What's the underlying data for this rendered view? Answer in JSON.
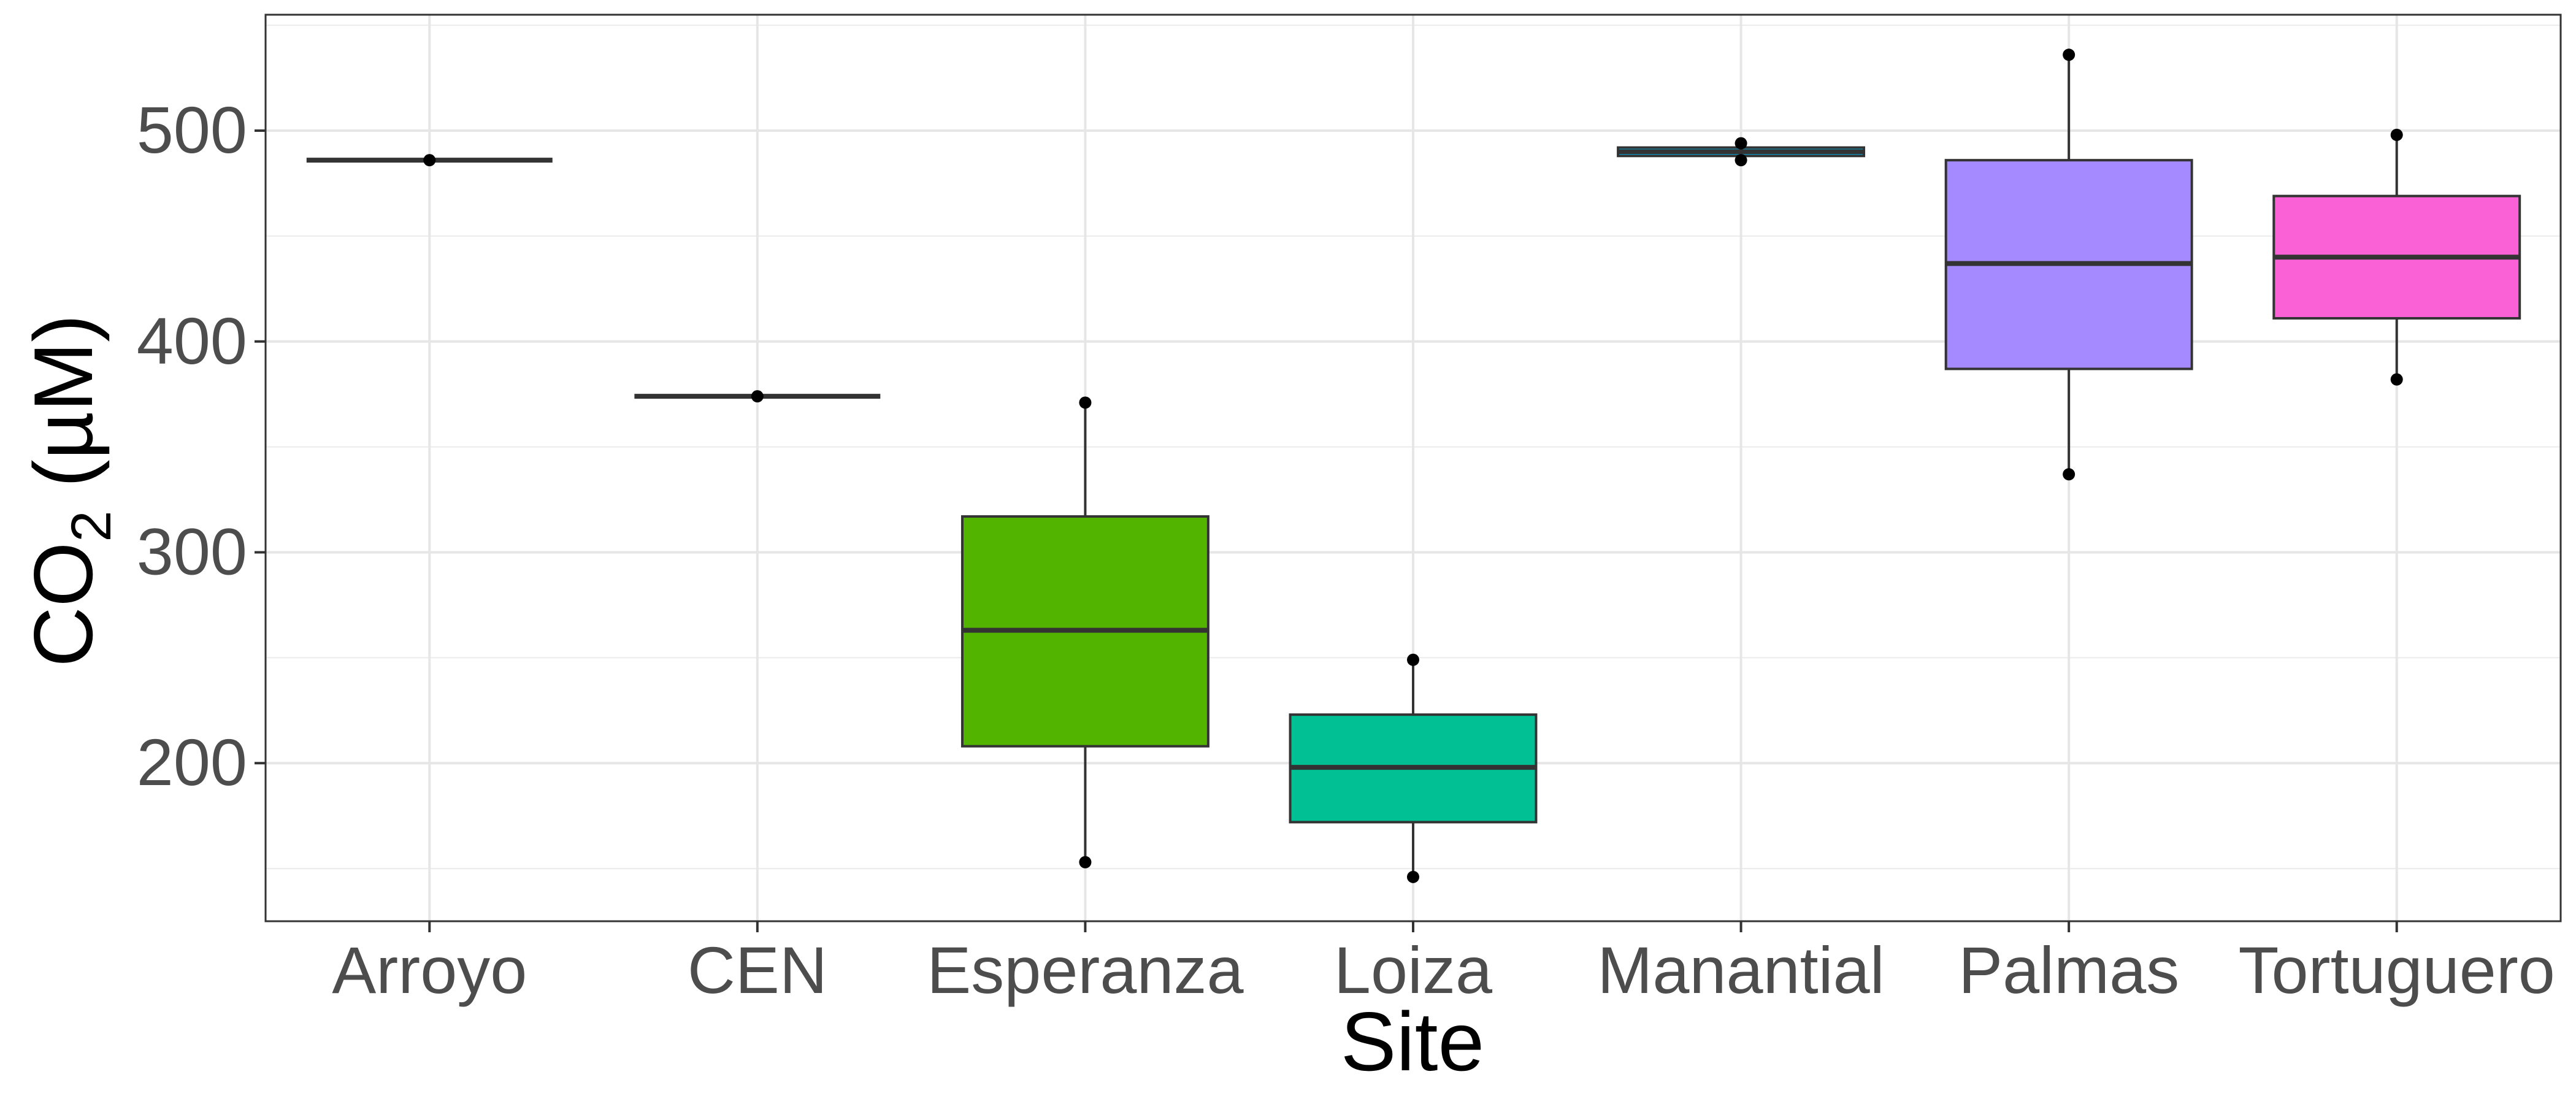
{
  "chart_data": {
    "type": "box",
    "title": "",
    "xlabel": "Site",
    "ylabel": {
      "main": "CO",
      "subscript": "2",
      "unit": " (µM)"
    },
    "yticks": [
      200,
      300,
      400,
      500
    ],
    "ylim": [
      125,
      555
    ],
    "grid": true,
    "legend": "none",
    "categories": [
      "Arroyo",
      "CEN",
      "Esperanza",
      "Loiza",
      "Manantial",
      "Palmas",
      "Tortuguero"
    ],
    "boxes": [
      {
        "category": "Arroyo",
        "min": 486,
        "q1": 486,
        "median": 486,
        "q3": 486,
        "max": 486,
        "points": [
          486
        ],
        "color": "#F8766D"
      },
      {
        "category": "CEN",
        "min": 374,
        "q1": 374,
        "median": 374,
        "q3": 374,
        "max": 374,
        "points": [
          374
        ],
        "color": "#C49A00"
      },
      {
        "category": "Esperanza",
        "min": 153,
        "q1": 208,
        "median": 263,
        "q3": 317,
        "max": 371,
        "points": [
          153,
          371
        ],
        "color": "#53B400"
      },
      {
        "category": "Loiza",
        "min": 146,
        "q1": 172,
        "median": 198,
        "q3": 223,
        "max": 249,
        "points": [
          146,
          249
        ],
        "color": "#00C094"
      },
      {
        "category": "Manantial",
        "min": 486,
        "q1": 488,
        "median": 490,
        "q3": 492,
        "max": 494,
        "points": [
          486,
          494
        ],
        "color": "#00B6EB"
      },
      {
        "category": "Palmas",
        "min": 337,
        "q1": 387,
        "median": 437,
        "q3": 486,
        "max": 536,
        "points": [
          337,
          536
        ],
        "color": "#A58AFF"
      },
      {
        "category": "Tortuguero",
        "min": 382,
        "q1": 411,
        "median": 440,
        "q3": 469,
        "max": 498,
        "points": [
          382,
          498
        ],
        "color": "#FB61D7"
      }
    ]
  }
}
